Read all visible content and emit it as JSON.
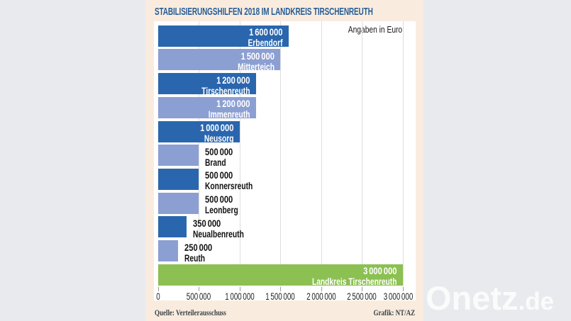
{
  "chart_data": {
    "type": "bar",
    "orientation": "horizontal",
    "title": "STABILISIERUNGSHILFEN 2018 IM LANDKREIS TIRSCHENREUTH",
    "units_label": "Angaben in Euro",
    "xlim": [
      0,
      3000000
    ],
    "x_ticks": [
      "0",
      "500 000",
      "1 000 000",
      "1 500 000",
      "2 000 000",
      "2 500 000",
      "3 000 000"
    ],
    "grid": true,
    "bars": [
      {
        "name": "Erbendorf",
        "value": 1600000,
        "label_value": "1 600 000",
        "color": "dark",
        "label_inside": true
      },
      {
        "name": "Mitterteich",
        "value": 1500000,
        "label_value": "1 500 000",
        "color": "light",
        "label_inside": true
      },
      {
        "name": "Tirschenreuth",
        "value": 1200000,
        "label_value": "1 200 000",
        "color": "dark",
        "label_inside": true
      },
      {
        "name": "Immenreuth",
        "value": 1200000,
        "label_value": "1 200 000",
        "color": "light",
        "label_inside": true
      },
      {
        "name": "Neusorg",
        "value": 1000000,
        "label_value": "1 000 000",
        "color": "dark",
        "label_inside": true
      },
      {
        "name": "Brand",
        "value": 500000,
        "label_value": "500 000",
        "color": "light",
        "label_inside": false
      },
      {
        "name": "Konnersreuth",
        "value": 500000,
        "label_value": "500 000",
        "color": "dark",
        "label_inside": false
      },
      {
        "name": "Leonberg",
        "value": 500000,
        "label_value": "500 000",
        "color": "light",
        "label_inside": false
      },
      {
        "name": "Neualbenreuth",
        "value": 350000,
        "label_value": "350 000",
        "color": "dark",
        "label_inside": false
      },
      {
        "name": "Reuth",
        "value": 250000,
        "label_value": "250 000",
        "color": "light",
        "label_inside": false
      },
      {
        "name": "Landkreis Tirschenreuth",
        "value": 3000000,
        "label_value": "3 000 000",
        "color": "green",
        "label_inside": true
      }
    ],
    "colors": {
      "dark": "#2a66ae",
      "light": "#8c9fd2",
      "green": "#8cc052"
    }
  },
  "footer": {
    "source": "Quelle: Verteilerausschuss",
    "credit": "Grafik: NT/AZ"
  },
  "watermark": {
    "text": "Onetz",
    "suffix": ".de"
  }
}
